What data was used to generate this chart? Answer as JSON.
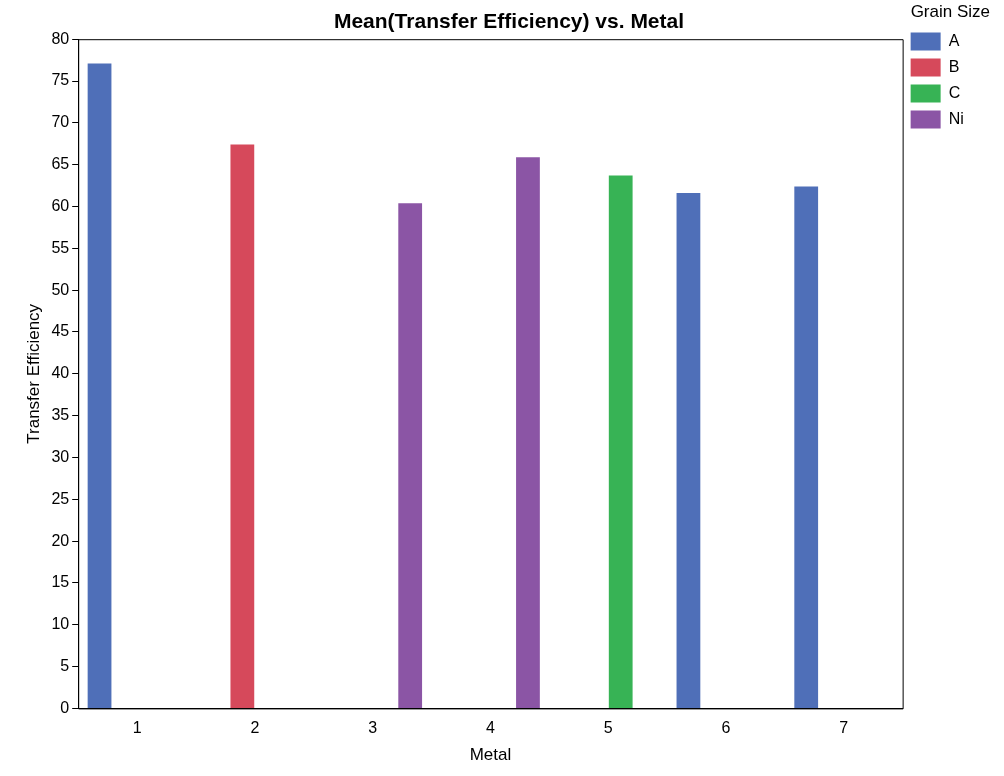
{
  "chart_data": {
    "type": "bar",
    "title": "Mean(Transfer Efficiency) vs. Metal",
    "xlabel": "Metal",
    "ylabel": "Transfer Efficiency",
    "legend_title": "Grain Size",
    "categories": [
      "1",
      "2",
      "3",
      "4",
      "5",
      "6",
      "7"
    ],
    "series": [
      {
        "name": "A",
        "color": "#4f6fb8",
        "values": [
          77.1,
          null,
          null,
          null,
          null,
          61.6,
          62.4
        ]
      },
      {
        "name": "B",
        "color": "#d6495b",
        "values": [
          null,
          67.4,
          null,
          null,
          null,
          null,
          null
        ]
      },
      {
        "name": "C",
        "color": "#37b355",
        "values": [
          null,
          null,
          null,
          null,
          63.7,
          null,
          null
        ]
      },
      {
        "name": "Ni",
        "color": "#8b55a5",
        "values": [
          null,
          null,
          60.4,
          65.9,
          null,
          null,
          null
        ]
      }
    ],
    "ylim": [
      0,
      80
    ],
    "yticks": [
      0,
      5,
      10,
      15,
      20,
      25,
      30,
      35,
      40,
      45,
      50,
      55,
      60,
      65,
      70,
      75,
      80
    ],
    "grid": false,
    "legend": "top right"
  }
}
